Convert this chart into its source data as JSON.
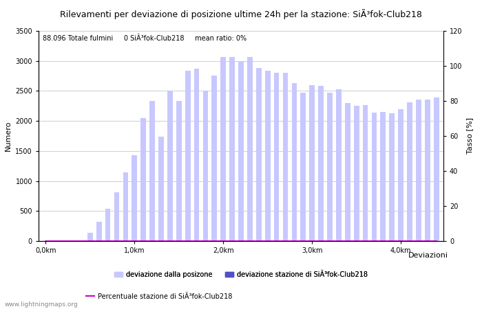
{
  "title": "Rilevamenti per deviazione di posizione ultime 24h per la stazione: SiÃ³fok-Club218",
  "subtitle": "88.096 Totale fulmini     0 SiÃ³fok-Club218     mean ratio: 0%",
  "xlabel": "Deviazioni",
  "ylabel_left": "Numero",
  "ylabel_right": "Tasso [%]",
  "watermark": "www.lightningmaps.org",
  "bar_values": [
    0,
    0,
    0,
    0,
    0,
    140,
    320,
    540,
    810,
    1140,
    1430,
    2050,
    2330,
    1740,
    2500,
    2330,
    2840,
    2870,
    2500,
    2760,
    3060,
    3060,
    3000,
    3060,
    2880,
    2840,
    2800,
    2800,
    2630,
    2470,
    2600,
    2590,
    2470,
    2530,
    2300,
    2250,
    2260,
    2140,
    2150,
    2130,
    2200,
    2310,
    2360,
    2360,
    2390
  ],
  "station_values": [
    0,
    0,
    0,
    0,
    0,
    0,
    0,
    0,
    0,
    0,
    0,
    0,
    0,
    0,
    0,
    0,
    0,
    0,
    0,
    0,
    0,
    0,
    0,
    0,
    0,
    0,
    0,
    0,
    0,
    0,
    0,
    0,
    0,
    0,
    0,
    0,
    0,
    0,
    0,
    0,
    0,
    0,
    0,
    0,
    0
  ],
  "ratio_values": [
    0,
    0,
    0,
    0,
    0,
    0,
    0,
    0,
    0,
    0,
    0,
    0,
    0,
    0,
    0,
    0,
    0,
    0,
    0,
    0,
    0,
    0,
    0,
    0,
    0,
    0,
    0,
    0,
    0,
    0,
    0,
    0,
    0,
    0,
    0,
    0,
    0,
    0,
    0,
    0,
    0,
    0,
    0,
    0,
    0
  ],
  "ylim_left": [
    0,
    3500
  ],
  "ylim_right": [
    0,
    120
  ],
  "bar_color_light": "#c8c8ff",
  "bar_color_dark": "#5050c8",
  "line_color": "#cc00cc",
  "grid_color": "#bbbbbb",
  "bg_color": "#ffffff",
  "title_fontsize": 9,
  "subtitle_fontsize": 7,
  "label_fontsize": 8,
  "tick_fontsize": 7,
  "legend_fontsize": 7,
  "xtick_labels": [
    "0,0km",
    "1,0km",
    "2,0km",
    "3,0km",
    "4,0km"
  ],
  "xtick_positions": [
    0,
    10,
    20,
    30,
    40
  ],
  "ytick_left": [
    0,
    500,
    1000,
    1500,
    2000,
    2500,
    3000,
    3500
  ],
  "ytick_right_labels": [
    "0",
    "20",
    "40",
    "60",
    "80",
    "100",
    "120"
  ],
  "ytick_right_vals": [
    0,
    20,
    40,
    60,
    80,
    100,
    120
  ]
}
